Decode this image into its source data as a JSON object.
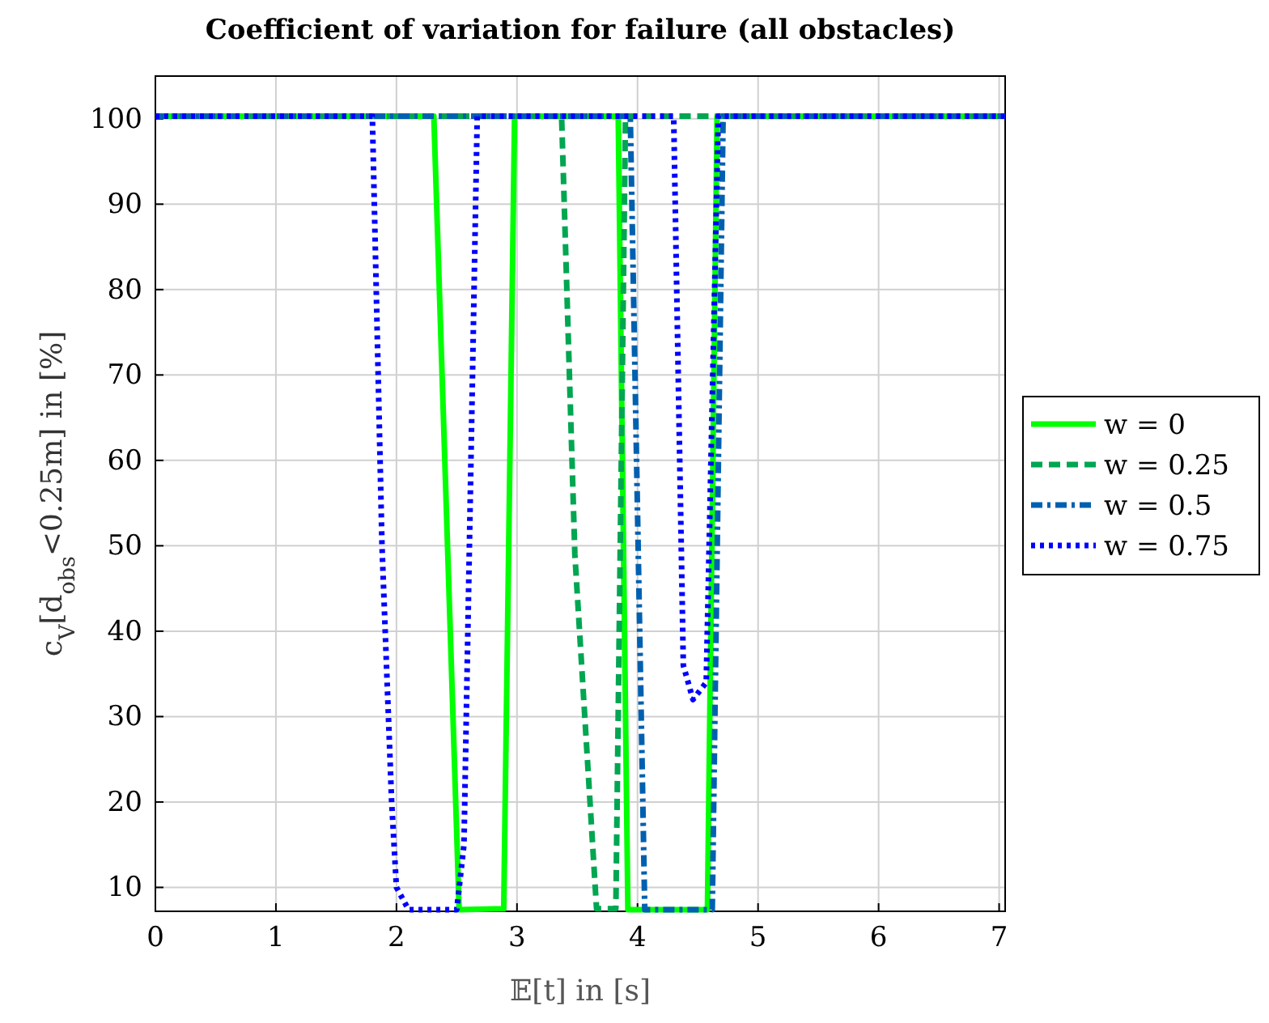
{
  "chart_data": {
    "type": "line",
    "title": "Coefficient of variation for failure (all obstacles)",
    "xlabel": "𝔼[t] in [s]",
    "ylabel": "c$_{V}$[d$_{obs}$<0.25m] in [%]",
    "xlim": [
      0,
      7.05
    ],
    "ylim": [
      7.2,
      105
    ],
    "xticks": [
      0,
      1,
      2,
      3,
      4,
      5,
      6,
      7
    ],
    "yticks": [
      10,
      20,
      30,
      40,
      50,
      60,
      70,
      80,
      90,
      100
    ],
    "grid": true,
    "legend": "right",
    "series": [
      {
        "name": "w = 0",
        "color": "#00ff00",
        "line_style": "solid",
        "x": [
          0,
          2.31,
          2.52,
          2.89,
          2.98,
          3.84,
          3.92,
          4.58,
          4.66,
          7.05
        ],
        "values": [
          100.3,
          100.3,
          7.4,
          7.5,
          100.3,
          100.3,
          7.4,
          7.4,
          100.3,
          100.3
        ]
      },
      {
        "name": "w = 0.25",
        "color": "#00a651",
        "line_style": "dashed",
        "x": [
          0,
          3.37,
          3.48,
          3.66,
          3.82,
          3.9,
          7.05
        ],
        "values": [
          100.3,
          100.3,
          49,
          7.5,
          7.5,
          100.3,
          100.3
        ]
      },
      {
        "name": "w = 0.5",
        "color": "#0060b0",
        "line_style": "dashdot",
        "x": [
          0,
          3.94,
          4.06,
          4.62,
          4.71,
          7.05
        ],
        "values": [
          100.3,
          100.3,
          7.4,
          7.4,
          100.3,
          100.3
        ]
      },
      {
        "name": "w = 0.75",
        "color": "#0000ff",
        "line_style": "dotted",
        "x": [
          0,
          1.8,
          1.88,
          1.96,
          2.0,
          2.1,
          2.5,
          2.56,
          2.67,
          4.3,
          4.38,
          4.46,
          4.57,
          4.67,
          7.05
        ],
        "values": [
          100.3,
          100.3,
          50,
          20,
          10,
          7.4,
          7.4,
          15,
          100.3,
          100.3,
          36,
          32,
          34,
          100.3,
          100.3
        ]
      }
    ]
  }
}
